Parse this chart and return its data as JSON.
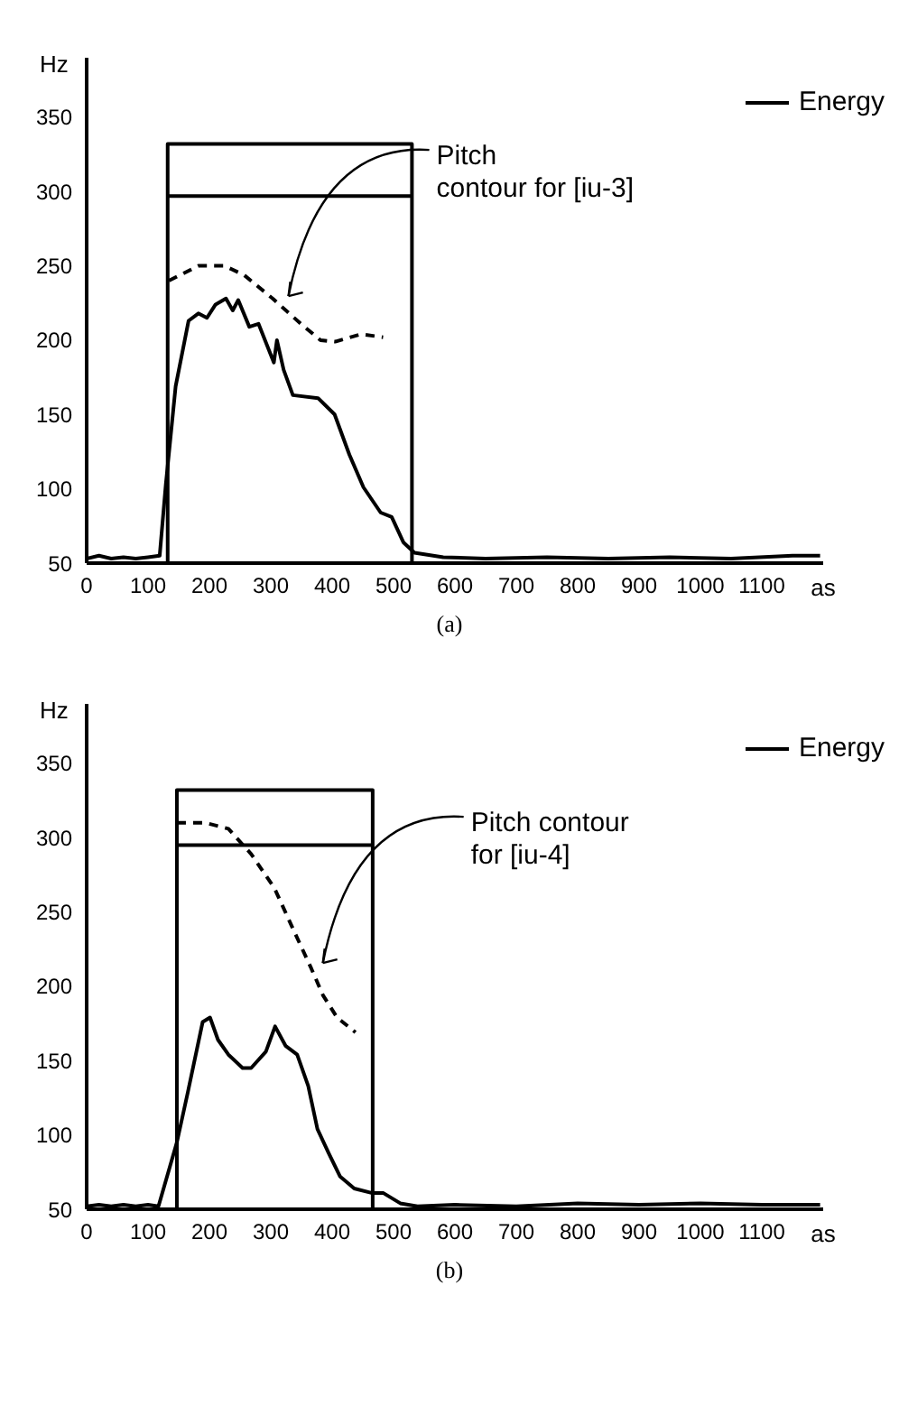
{
  "chart_data": [
    {
      "type": "line",
      "ylabel": "Hz",
      "xlabel": "as",
      "xlim": [
        0,
        1200
      ],
      "ylim": [
        50,
        390
      ],
      "xticks": [
        0,
        100,
        200,
        300,
        400,
        500,
        600,
        700,
        800,
        900,
        1000,
        1100
      ],
      "yticks": [
        50,
        100,
        150,
        200,
        250,
        300,
        350
      ],
      "legend": "top right",
      "marker": "none",
      "annotations": [
        {
          "text": "Pitch\ncontour for [iu-3]",
          "x": 320,
          "y": 226
        },
        "(a)"
      ],
      "series": [
        {
          "name": "Energy",
          "color": "#000000",
          "line_style": "solid",
          "x": [
            0,
            20,
            40,
            60,
            80,
            100,
            119,
            129,
            145,
            166,
            182,
            196,
            210,
            227,
            238,
            247,
            265,
            280,
            305,
            310,
            321,
            336,
            377,
            404,
            428,
            451,
            479,
            497,
            516,
            534,
            581,
            650,
            750,
            850,
            950,
            1050,
            1150,
            1195
          ],
          "values": [
            53,
            55,
            53,
            54,
            53,
            54,
            55,
            103,
            169,
            213,
            218,
            215,
            224,
            228,
            220,
            227,
            209,
            211,
            185,
            200,
            180,
            163,
            161,
            150,
            123,
            101,
            84,
            81,
            64,
            57,
            54,
            53,
            54,
            53,
            54,
            53,
            55,
            55
          ]
        },
        {
          "color": "#000000",
          "line_style": "dashed",
          "x": [
            134,
            182,
            224,
            256,
            303,
            349,
            381,
            405,
            447,
            483
          ],
          "values": [
            240,
            250,
            250,
            244,
            228,
            211,
            200,
            199,
            204,
            202
          ]
        },
        {
          "color": "#000000",
          "line_style": "solid",
          "x": [
            132,
            132,
            530,
            530
          ],
          "values": [
            50,
            332,
            332,
            50
          ]
        },
        {
          "color": "#000000",
          "line_style": "solid",
          "x": [
            132,
            530
          ],
          "values": [
            297,
            297
          ]
        }
      ]
    },
    {
      "type": "line",
      "ylabel": "Hz",
      "xlabel": "as",
      "xlim": [
        0,
        1200
      ],
      "ylim": [
        50,
        390
      ],
      "xticks": [
        0,
        100,
        200,
        300,
        400,
        500,
        600,
        700,
        800,
        900,
        1000,
        1100
      ],
      "yticks": [
        50,
        100,
        150,
        200,
        250,
        300,
        350
      ],
      "legend": "top right",
      "marker": "none",
      "annotations": [
        {
          "text": "Pitch contour\nfor [iu-4]",
          "x": 376,
          "y": 212
        },
        "(b)"
      ],
      "series": [
        {
          "name": "Energy",
          "color": "#000000",
          "line_style": "solid",
          "x": [
            0,
            20,
            40,
            60,
            80,
            100,
            117,
            147,
            165,
            189,
            201,
            214,
            231,
            254,
            268,
            292,
            307,
            324,
            343,
            361,
            376,
            394,
            413,
            436,
            464,
            483,
            511,
            539,
            600,
            700,
            800,
            900,
            1000,
            1100,
            1195
          ],
          "values": [
            52,
            53,
            52,
            53,
            52,
            53,
            52,
            95,
            129,
            176,
            179,
            164,
            154,
            145,
            145,
            156,
            173,
            160,
            154,
            133,
            104,
            88,
            72,
            64,
            61,
            61,
            54,
            52,
            53,
            52,
            54,
            53,
            54,
            53,
            53
          ]
        },
        {
          "color": "#000000",
          "line_style": "dashed",
          "x": [
            147,
            193,
            231,
            268,
            306,
            338,
            366,
            385,
            408,
            438
          ],
          "values": [
            310,
            310,
            306,
            289,
            266,
            237,
            212,
            194,
            179,
            169
          ]
        },
        {
          "color": "#000000",
          "line_style": "solid",
          "x": [
            147,
            147,
            466,
            466
          ],
          "values": [
            50,
            332,
            332,
            50
          ]
        },
        {
          "color": "#000000",
          "line_style": "solid",
          "x": [
            147,
            466
          ],
          "values": [
            295,
            295
          ]
        }
      ]
    }
  ]
}
